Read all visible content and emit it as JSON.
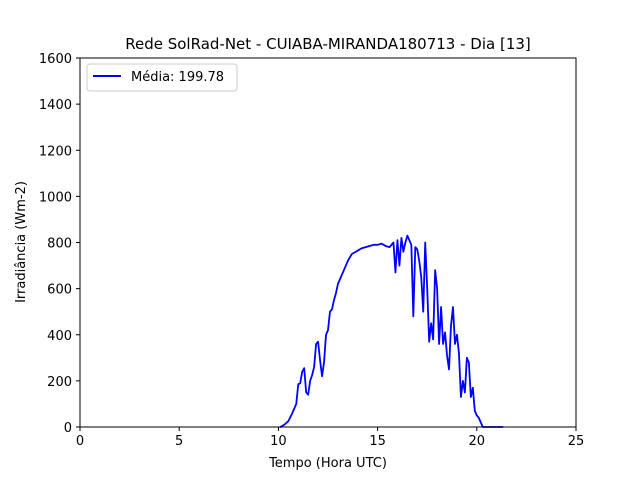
{
  "chart_data": {
    "type": "line",
    "title": "Rede SolRad-Net - CUIABA-MIRANDA180713 - Dia [13]",
    "xlabel": "Tempo (Hora UTC)",
    "ylabel": "Irradiância (Wm-2)",
    "xlim": [
      0,
      25
    ],
    "ylim": [
      0,
      1600
    ],
    "x_ticks": [
      0,
      5,
      10,
      15,
      20,
      25
    ],
    "y_ticks": [
      0,
      200,
      400,
      600,
      800,
      1000,
      1200,
      1400,
      1600
    ],
    "grid": false,
    "legend_position": "top-left",
    "series": [
      {
        "name": "Média: 199.78",
        "color": "#0000ff",
        "x": [
          10.1,
          10.3,
          10.5,
          10.7,
          10.9,
          11.0,
          11.1,
          11.2,
          11.3,
          11.4,
          11.5,
          11.6,
          11.7,
          11.8,
          11.9,
          12.0,
          12.1,
          12.2,
          12.3,
          12.4,
          12.5,
          12.6,
          12.7,
          12.8,
          12.9,
          13.0,
          13.1,
          13.2,
          13.3,
          13.4,
          13.5,
          13.6,
          13.7,
          13.8,
          13.9,
          14.0,
          14.2,
          14.4,
          14.6,
          14.8,
          15.0,
          15.2,
          15.4,
          15.6,
          15.8,
          15.9,
          16.0,
          16.1,
          16.2,
          16.3,
          16.4,
          16.5,
          16.6,
          16.7,
          16.8,
          16.9,
          17.0,
          17.1,
          17.2,
          17.3,
          17.4,
          17.5,
          17.6,
          17.7,
          17.8,
          17.9,
          18.0,
          18.1,
          18.2,
          18.3,
          18.4,
          18.5,
          18.6,
          18.7,
          18.8,
          18.9,
          19.0,
          19.1,
          19.2,
          19.3,
          19.4,
          19.5,
          19.6,
          19.7,
          19.8,
          19.9,
          20.0,
          20.1,
          20.2,
          20.3,
          20.4,
          20.5,
          20.7,
          20.9,
          21.1,
          21.3
        ],
        "y": [
          0,
          10,
          25,
          60,
          100,
          185,
          190,
          240,
          255,
          150,
          140,
          200,
          225,
          260,
          360,
          370,
          290,
          220,
          280,
          400,
          420,
          500,
          510,
          550,
          580,
          620,
          640,
          660,
          680,
          700,
          720,
          735,
          750,
          755,
          760,
          765,
          775,
          780,
          785,
          790,
          790,
          795,
          785,
          780,
          800,
          670,
          810,
          700,
          820,
          760,
          800,
          830,
          810,
          790,
          480,
          780,
          770,
          720,
          650,
          500,
          800,
          600,
          370,
          450,
          380,
          680,
          600,
          360,
          520,
          360,
          410,
          310,
          250,
          440,
          520,
          360,
          400,
          320,
          130,
          200,
          150,
          300,
          280,
          130,
          170,
          70,
          50,
          40,
          20,
          0,
          0,
          0,
          0,
          0,
          0,
          0
        ]
      }
    ]
  }
}
